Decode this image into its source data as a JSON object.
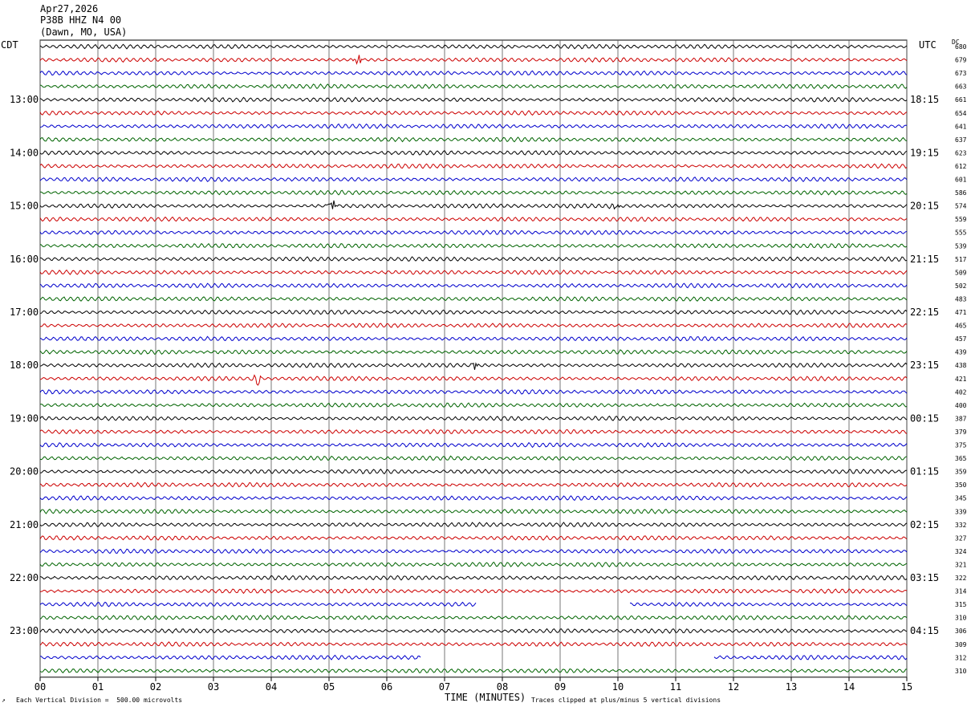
{
  "header": {
    "date": "Apr27,2026",
    "station": "P38B HHZ N4 00",
    "location": "(Dawn, MO, USA)"
  },
  "labels": {
    "left_tz": "CDT",
    "right_tz": "UTC",
    "dc": "DC",
    "footer_left": "Each Vertical Division =  500.00 microvolts",
    "footer_right": "Traces clipped at plus/minus 5 vertical divisions"
  },
  "chart_data": {
    "type": "line",
    "title": "",
    "xlabel": "TIME (MINUTES)",
    "ylabel": "",
    "x_range": [
      0,
      15
    ],
    "x_ticks": [
      "00",
      "01",
      "02",
      "03",
      "04",
      "05",
      "06",
      "07",
      "08",
      "09",
      "10",
      "11",
      "12",
      "13",
      "14",
      "15"
    ],
    "trace_colors": [
      "#000000",
      "#cc0000",
      "#0000cc",
      "#006400"
    ],
    "left_time_labels": [
      "13:00",
      "14:00",
      "15:00",
      "16:00",
      "17:00",
      "18:00",
      "19:00",
      "20:00",
      "21:00",
      "22:00",
      "23:00"
    ],
    "right_time_labels": [
      "18:15",
      "19:15",
      "20:15",
      "21:15",
      "22:15",
      "23:15",
      "00:15",
      "01:15",
      "02:15",
      "03:15",
      "04:15"
    ],
    "dc_offsets": [
      "680",
      "679",
      "673",
      "663",
      "661",
      "654",
      "641",
      "637",
      "623",
      "612",
      "601",
      "586",
      "574",
      "559",
      "555",
      "539",
      "517",
      "509",
      "502",
      "483",
      "471",
      "465",
      "457",
      "439",
      "438",
      "421",
      "402",
      "400",
      "387",
      "379",
      "375",
      "365",
      "359",
      "350",
      "345",
      "339",
      "332",
      "327",
      "324",
      "321",
      "322",
      "314",
      "315",
      "310",
      "306",
      "309",
      "312",
      "310"
    ],
    "gaps": [
      {
        "trace": 42,
        "from_min": 7.55,
        "to_min": 10.2
      },
      {
        "trace": 46,
        "from_min": 6.6,
        "to_min": 11.65
      }
    ],
    "events": [
      {
        "trace": 1,
        "at_min": 5.5
      },
      {
        "trace": 12,
        "at_min": 5.05
      },
      {
        "trace": 12,
        "at_min": 9.95
      },
      {
        "trace": 24,
        "at_min": 7.5
      },
      {
        "trace": 25,
        "at_min": 3.75
      }
    ]
  }
}
